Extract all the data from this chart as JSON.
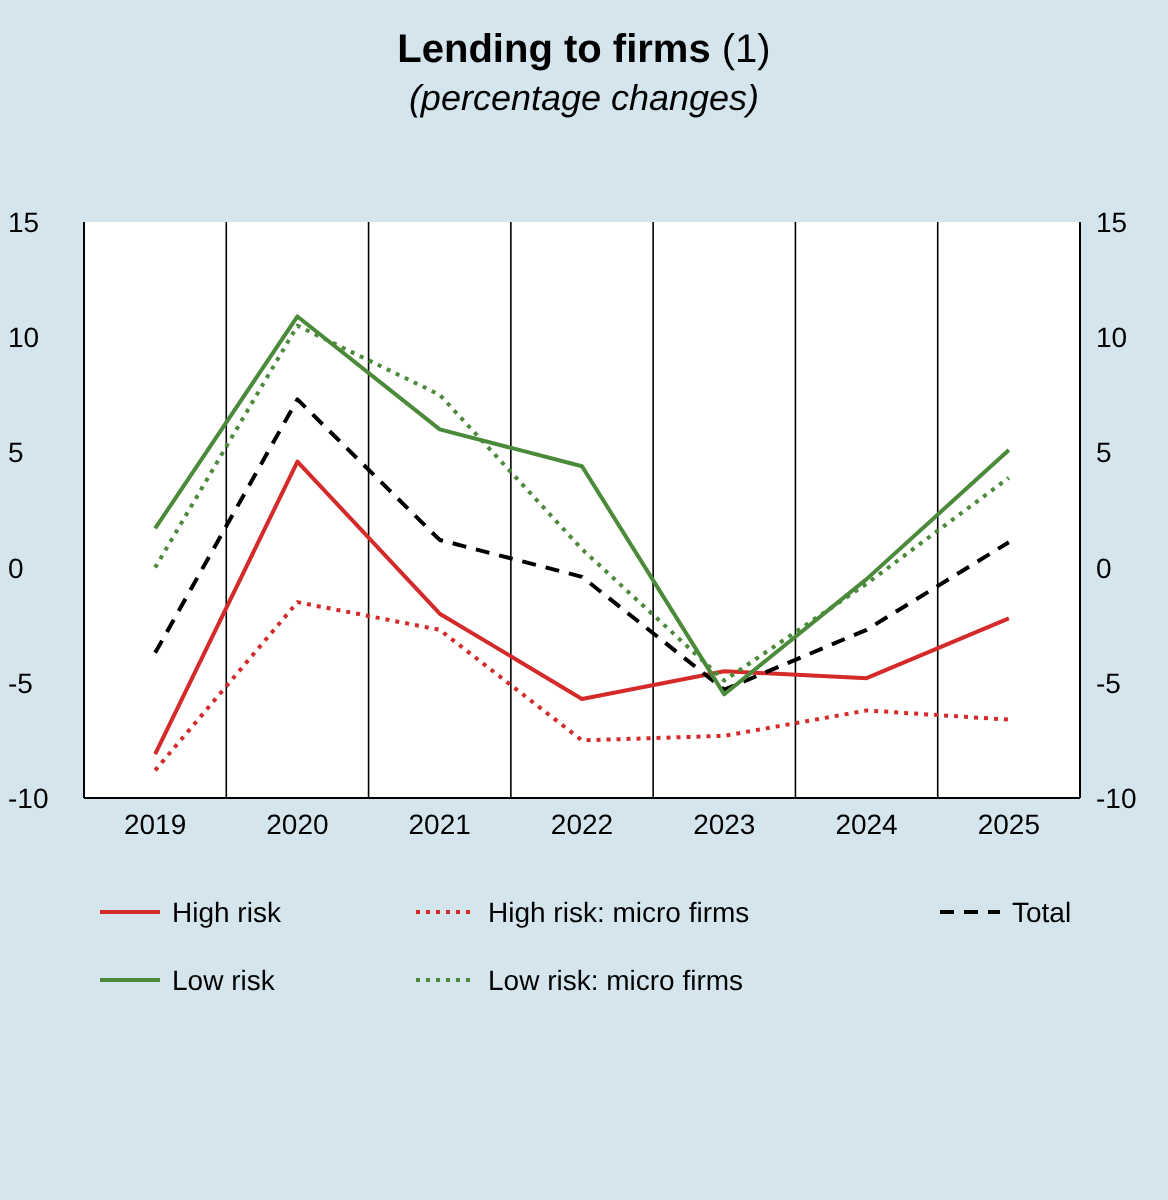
{
  "chart_data": {
    "type": "line",
    "title": "Lending to firms (1)",
    "subtitle": "(percentage changes)",
    "categories": [
      "2019",
      "2020",
      "2021",
      "2022",
      "2023",
      "2024",
      "2025"
    ],
    "series": [
      {
        "name": "High risk",
        "color": "#d42a2a",
        "line_style": "solid",
        "values": [
          -8.1,
          4.6,
          -2.0,
          -5.7,
          -4.5,
          -4.8,
          -2.2
        ]
      },
      {
        "name": "High risk: micro firms",
        "color": "#d42a2a",
        "line_style": "dotted",
        "values": [
          -8.8,
          -1.5,
          -2.7,
          -7.5,
          -7.3,
          -6.2,
          -6.6
        ]
      },
      {
        "name": "Total",
        "color": "#000000",
        "line_style": "dashed",
        "values": [
          -3.7,
          7.3,
          1.2,
          -0.4,
          -5.3,
          -2.7,
          1.1
        ]
      },
      {
        "name": "Low risk",
        "color": "#4a8a3a",
        "line_style": "solid",
        "values": [
          1.7,
          10.9,
          6.0,
          4.4,
          -5.5,
          -0.5,
          5.1
        ]
      },
      {
        "name": "Low risk: micro firms",
        "color": "#4a8a3a",
        "line_style": "dotted",
        "values": [
          0,
          10.5,
          7.5,
          0.8,
          -4.9,
          -0.7,
          3.9
        ]
      }
    ],
    "ylim": [
      -10,
      15
    ],
    "yticks": [
      -10,
      -5,
      0,
      5,
      10,
      15
    ],
    "y2lim": [
      -10,
      15
    ],
    "y2ticks": [
      -10,
      -5,
      0,
      5,
      10,
      15
    ],
    "grid": "x",
    "legend": "bottom",
    "marker": "none"
  }
}
